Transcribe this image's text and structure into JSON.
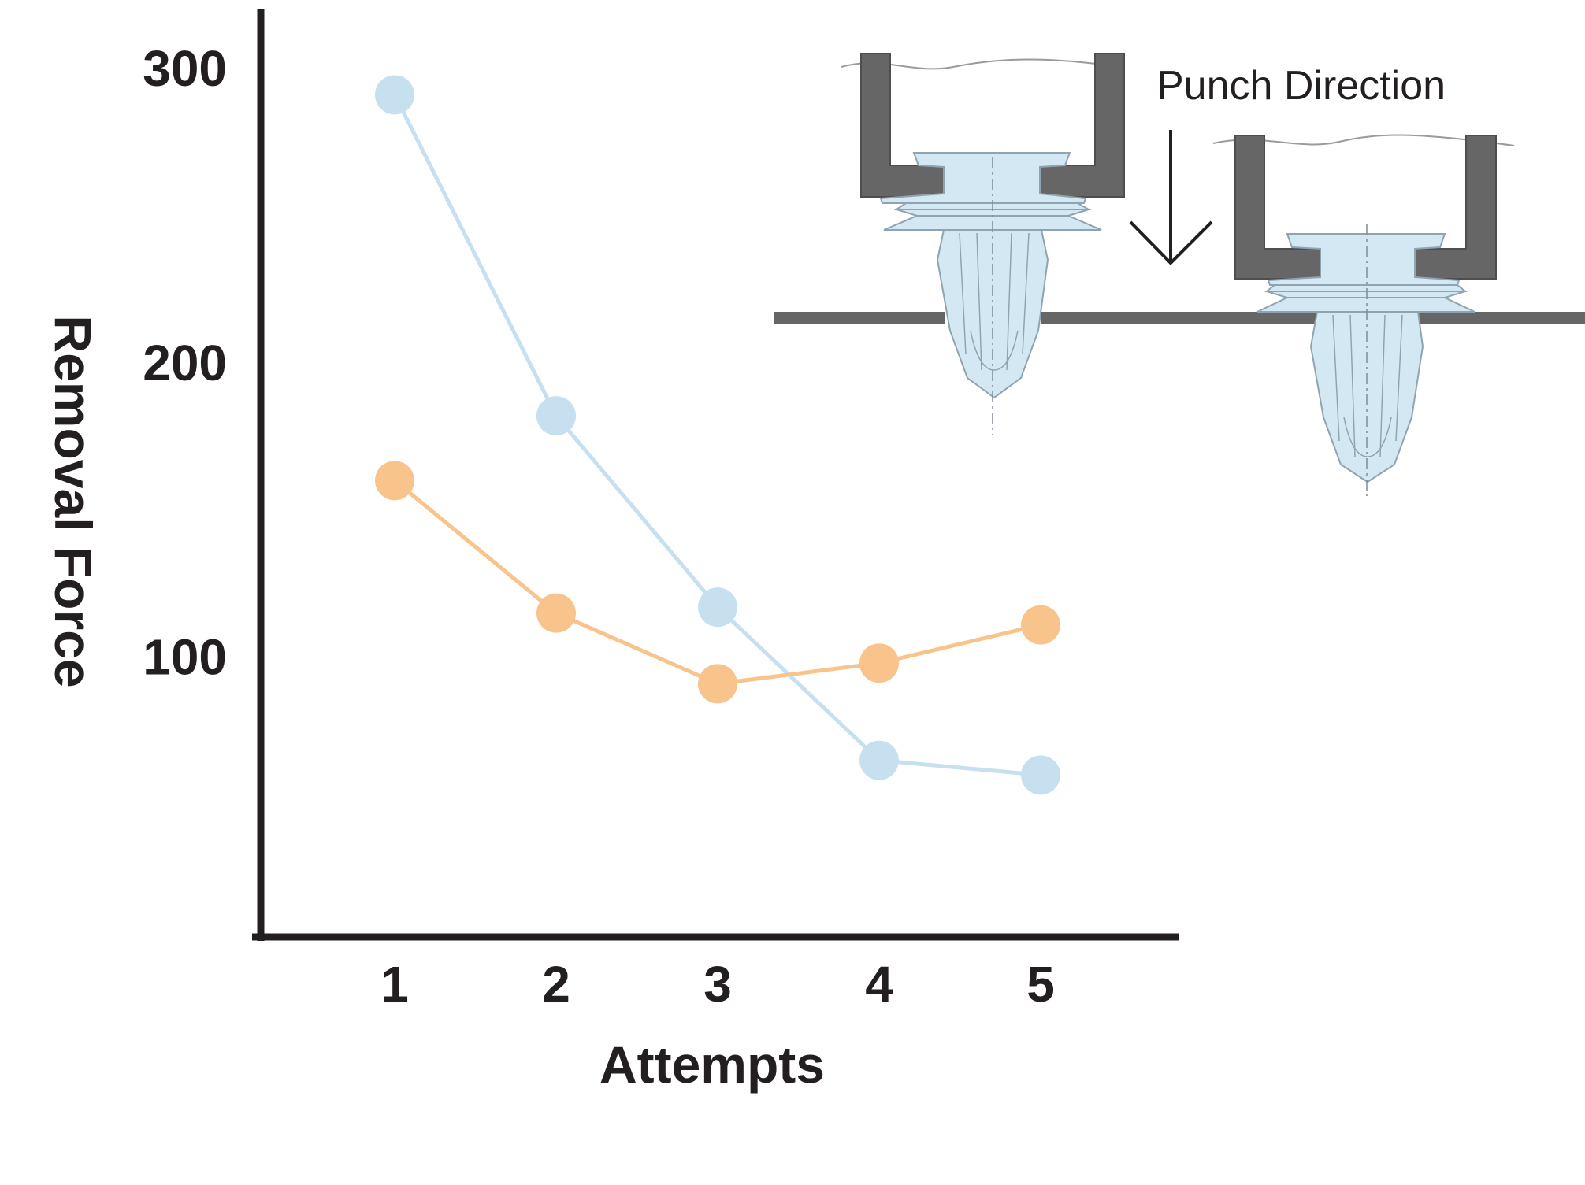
{
  "chart_data": {
    "type": "line",
    "title": "",
    "xlabel": "Attempts",
    "ylabel": "Removal Force",
    "x": [
      1,
      2,
      3,
      4,
      5
    ],
    "xticks": [
      "1",
      "2",
      "3",
      "4",
      "5"
    ],
    "yticks": [
      "100",
      "200",
      "300"
    ],
    "ylim": [
      5,
      320
    ],
    "grid": false,
    "legend": "none",
    "series": [
      {
        "values": [
          291,
          182,
          117,
          65,
          60
        ],
        "color": "#c6e0ef"
      },
      {
        "values": [
          160,
          115,
          91,
          98,
          111
        ],
        "color": "#f8c48c"
      }
    ],
    "annotations": [
      "Punch Direction"
    ]
  },
  "colors": {
    "axis": "#231f20",
    "panel": "#666666",
    "clip_fill": "#d4e8f4",
    "clip_stroke": "#8fa3b1"
  }
}
